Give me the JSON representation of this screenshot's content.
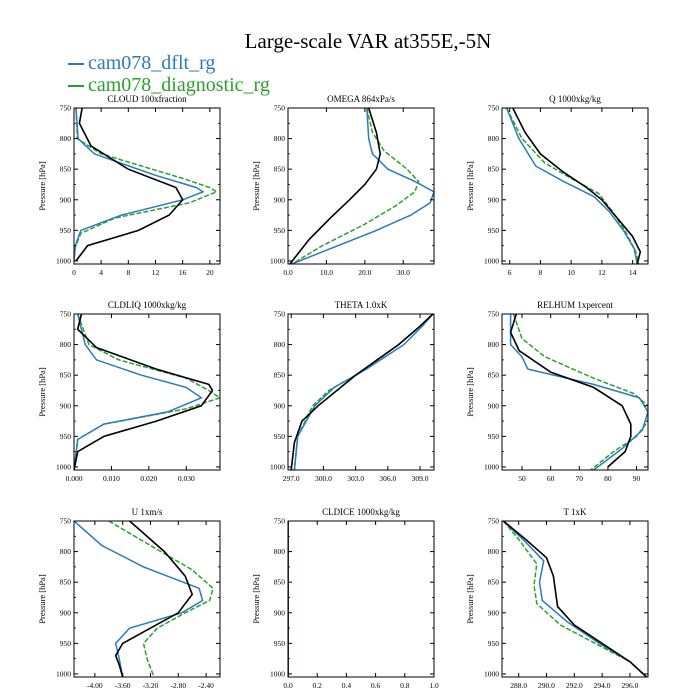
{
  "figure": {
    "title": "Large-scale VAR at355E,-5N",
    "colors": {
      "dflt": "#2b7bba",
      "diag": "#2ca02c",
      "obs": "#000000"
    }
  },
  "chart_data": [
    {
      "type": "line",
      "title": "CLOUD  100xfraction",
      "ylabel": "Pressure [hPa]",
      "xlim": [
        0,
        21.5
      ],
      "ylim": [
        1005,
        750
      ],
      "xticks": [
        0,
        4,
        8,
        12,
        16,
        20
      ],
      "xtick_labels": [
        "0",
        "4",
        "8",
        "12",
        "16",
        "20"
      ],
      "yticks": [
        750,
        800,
        850,
        900,
        950,
        1000
      ],
      "ytick_labels": [
        "750",
        "800",
        "850",
        "900",
        "950",
        "1000"
      ],
      "series": [
        {
          "key": "obs",
          "name": "",
          "x": [
            1.2,
            0.8,
            2.5,
            8,
            15,
            16,
            14,
            9.5,
            2,
            0.3
          ],
          "y": [
            750,
            775,
            812,
            850,
            880,
            900,
            925,
            950,
            975,
            1000
          ]
        },
        {
          "key": "dflt",
          "name": "cam078_dflt_rg",
          "x": [
            0.3,
            0.6,
            3,
            12,
            18,
            19,
            16,
            7,
            1,
            0.2,
            0
          ],
          "y": [
            750,
            800,
            825,
            860,
            880,
            887,
            900,
            925,
            950,
            975,
            1000
          ]
        },
        {
          "key": "diag",
          "name": "cam078_diagnostic_rg",
          "x": [
            0.3,
            0.5,
            4,
            16,
            20,
            21,
            17,
            6,
            1,
            0.1,
            0
          ],
          "y": [
            750,
            800,
            825,
            865,
            880,
            887,
            905,
            930,
            955,
            980,
            1000
          ]
        }
      ]
    },
    {
      "type": "line",
      "title": "OMEGA  864xPa/s",
      "ylabel": "Pressure [hPa]",
      "xlim": [
        0,
        38
      ],
      "ylim": [
        1005,
        750
      ],
      "xticks": [
        0,
        10,
        20,
        30
      ],
      "xtick_labels": [
        "0.0",
        "10.0",
        "20.0",
        "30.0"
      ],
      "yticks": [
        750,
        800,
        850,
        900,
        950,
        1000
      ],
      "ytick_labels": [
        "750",
        "800",
        "850",
        "900",
        "950",
        "1000"
      ],
      "series": [
        {
          "key": "obs",
          "name": "",
          "x": [
            21,
            23,
            24,
            23,
            20,
            16,
            11,
            5.5,
            0.5
          ],
          "y": [
            750,
            790,
            825,
            850,
            875,
            900,
            930,
            965,
            1005
          ]
        },
        {
          "key": "dflt",
          "name": "cam078_dflt_rg",
          "x": [
            20.5,
            21,
            22,
            26,
            33,
            38,
            37,
            32,
            23,
            11,
            1
          ],
          "y": [
            750,
            800,
            825,
            850,
            870,
            887,
            905,
            925,
            950,
            980,
            1005
          ]
        },
        {
          "key": "diag",
          "name": "cam078_diagnostic_rg",
          "x": [
            20.5,
            22,
            25,
            31,
            34,
            33,
            28,
            20,
            9,
            1
          ],
          "y": [
            750,
            790,
            820,
            850,
            870,
            887,
            910,
            940,
            975,
            1005
          ]
        }
      ]
    },
    {
      "type": "line",
      "title": "Q  1000xkg/kg",
      "ylabel": "Pressure [hPa]",
      "xlim": [
        5.5,
        15
      ],
      "ylim": [
        1005,
        750
      ],
      "xticks": [
        6,
        8,
        10,
        12,
        14
      ],
      "xtick_labels": [
        "6",
        "8",
        "10",
        "12",
        "14"
      ],
      "yticks": [
        750,
        800,
        850,
        900,
        950,
        1000
      ],
      "ytick_labels": [
        "750",
        "800",
        "850",
        "900",
        "950",
        "1000"
      ],
      "series": [
        {
          "key": "obs",
          "name": "",
          "x": [
            6.2,
            7,
            8,
            9.5,
            11,
            12,
            13,
            14,
            14.5,
            14.3
          ],
          "y": [
            750,
            790,
            825,
            855,
            880,
            900,
            930,
            960,
            985,
            1005
          ]
        },
        {
          "key": "dflt",
          "name": "cam078_dflt_rg",
          "x": [
            5.8,
            6.6,
            7.7,
            9.5,
            11.5,
            12.5,
            13.4,
            14.1,
            14.3
          ],
          "y": [
            750,
            800,
            845,
            870,
            895,
            920,
            950,
            980,
            1005
          ]
        },
        {
          "key": "diag",
          "name": "cam078_diagnostic_rg",
          "x": [
            5.8,
            6.8,
            8.3,
            10,
            11.8,
            12.7,
            13.5,
            14.2,
            14.4
          ],
          "y": [
            750,
            800,
            840,
            865,
            890,
            920,
            950,
            985,
            1005
          ]
        }
      ]
    },
    {
      "type": "line",
      "title": "CLDLIQ  1000xkg/kg",
      "ylabel": "Pressure [hPa]",
      "xlim": [
        0,
        0.039
      ],
      "ylim": [
        1005,
        750
      ],
      "xticks": [
        0,
        0.01,
        0.02,
        0.03
      ],
      "xtick_labels": [
        "0.000",
        "0.010",
        "0.020",
        "0.030"
      ],
      "yticks": [
        750,
        800,
        850,
        900,
        950,
        1000
      ],
      "ytick_labels": [
        "750",
        "800",
        "850",
        "900",
        "950",
        "1000"
      ],
      "series": [
        {
          "key": "obs",
          "name": "",
          "x": [
            0.002,
            0.001,
            0.006,
            0.022,
            0.036,
            0.037,
            0.034,
            0.022,
            0.008,
            0.001,
            0
          ],
          "y": [
            750,
            775,
            805,
            840,
            865,
            875,
            900,
            925,
            950,
            975,
            1005
          ]
        },
        {
          "key": "dflt",
          "name": "cam078_dflt_rg",
          "x": [
            0.001,
            0.003,
            0.006,
            0.018,
            0.03,
            0.034,
            0.025,
            0.008,
            0.001,
            0
          ],
          "y": [
            750,
            800,
            825,
            850,
            870,
            887,
            910,
            930,
            955,
            1005
          ]
        },
        {
          "key": "diag",
          "name": "cam078_diagnostic_rg",
          "x": [
            0.001,
            0.004,
            0.012,
            0.03,
            0.036,
            0.039,
            0.03,
            0.008,
            0.001,
            0
          ],
          "y": [
            750,
            800,
            825,
            855,
            875,
            887,
            905,
            930,
            955,
            1005
          ]
        }
      ]
    },
    {
      "type": "line",
      "title": "THETA  1.0xK",
      "ylabel": "",
      "xlim": [
        296.7,
        310.3
      ],
      "ylim": [
        1005,
        750
      ],
      "xticks": [
        297,
        300,
        303,
        306,
        309
      ],
      "xtick_labels": [
        "297.0",
        "300.0",
        "303.0",
        "306.0",
        "309.0"
      ],
      "yticks": [
        750,
        800,
        850,
        900,
        950,
        1000
      ],
      "ytick_labels": [
        "750",
        "800",
        "850",
        "900",
        "950",
        "1000"
      ],
      "series": [
        {
          "key": "obs",
          "name": "",
          "x": [
            310.2,
            309,
            307,
            303,
            299.5,
            298,
            297.3,
            297
          ],
          "y": [
            750,
            770,
            800,
            850,
            900,
            925,
            960,
            1005
          ]
        },
        {
          "key": "dflt",
          "name": "cam078_dflt_rg",
          "x": [
            310.2,
            309.2,
            307.5,
            304,
            301,
            299.2,
            297.6,
            297.3
          ],
          "y": [
            750,
            770,
            800,
            840,
            870,
            900,
            950,
            1005
          ]
        },
        {
          "key": "diag",
          "name": "cam078_diagnostic_rg",
          "x": [
            310.2,
            309,
            307,
            303.5,
            300.5,
            299,
            297.6,
            297.3
          ],
          "y": [
            750,
            770,
            800,
            845,
            875,
            900,
            950,
            1005
          ]
        }
      ]
    },
    {
      "type": "line",
      "title": "RELHUM  1xpercent",
      "ylabel": "Pressure [hPa]",
      "xlim": [
        43,
        94
      ],
      "ylim": [
        1005,
        750
      ],
      "xticks": [
        50,
        60,
        70,
        80,
        90
      ],
      "xtick_labels": [
        "50",
        "60",
        "70",
        "80",
        "90"
      ],
      "yticks": [
        750,
        800,
        850,
        900,
        950,
        1000
      ],
      "ytick_labels": [
        "750",
        "800",
        "850",
        "900",
        "950",
        "1000"
      ],
      "series": [
        {
          "key": "obs",
          "name": "",
          "x": [
            48,
            46,
            49,
            60,
            75,
            85,
            88,
            88,
            86,
            80
          ],
          "y": [
            750,
            780,
            810,
            845,
            870,
            900,
            930,
            950,
            975,
            1000
          ]
        },
        {
          "key": "dflt",
          "name": "cam078_dflt_rg",
          "x": [
            46,
            46,
            50,
            52,
            75,
            91,
            94,
            92,
            85,
            75
          ],
          "y": [
            750,
            800,
            820,
            840,
            865,
            887,
            910,
            940,
            970,
            1005
          ]
        },
        {
          "key": "diag",
          "name": "cam078_diagnostic_rg",
          "x": [
            47,
            50,
            58,
            75,
            89,
            94,
            94,
            90,
            82,
            74
          ],
          "y": [
            750,
            790,
            820,
            855,
            880,
            900,
            925,
            950,
            975,
            1005
          ]
        }
      ]
    },
    {
      "type": "line",
      "title": "U  1xm/s",
      "ylabel": "Pressure [hPa]",
      "xlim": [
        -4.3,
        -2.2
      ],
      "ylim": [
        1005,
        750
      ],
      "xticks": [
        -4,
        -3.6,
        -3.2,
        -2.8,
        -2.4
      ],
      "xtick_labels": [
        "-4.00",
        "-3.60",
        "-3.20",
        "-2.80",
        "-2.40"
      ],
      "yticks": [
        750,
        800,
        850,
        900,
        950,
        1000
      ],
      "ytick_labels": [
        "750",
        "800",
        "850",
        "900",
        "950",
        "1000"
      ],
      "series": [
        {
          "key": "obs",
          "name": "",
          "x": [
            -3.5,
            -3.0,
            -2.7,
            -2.6,
            -2.8,
            -3.2,
            -3.6,
            -3.7,
            -3.65,
            -3.6
          ],
          "y": [
            750,
            800,
            840,
            870,
            900,
            925,
            950,
            970,
            985,
            1005
          ]
        },
        {
          "key": "dflt",
          "name": "cam078_dflt_rg",
          "x": [
            -4.3,
            -3.9,
            -3.3,
            -2.5,
            -2.45,
            -2.75,
            -3.5,
            -3.7,
            -3.65,
            -3.6
          ],
          "y": [
            750,
            790,
            825,
            860,
            880,
            900,
            925,
            950,
            975,
            1005
          ]
        },
        {
          "key": "diag",
          "name": "cam078_diagnostic_rg",
          "x": [
            -3.8,
            -3.2,
            -2.6,
            -2.3,
            -2.35,
            -2.7,
            -3.1,
            -3.3,
            -3.25,
            -3.15
          ],
          "y": [
            750,
            790,
            830,
            860,
            880,
            900,
            925,
            950,
            975,
            1005
          ]
        }
      ]
    },
    {
      "type": "line",
      "title": "CLDICE  1000xkg/kg",
      "ylabel": "Pressure [hPa]",
      "xlim": [
        0,
        1
      ],
      "ylim": [
        1005,
        750
      ],
      "xticks": [
        0,
        0.2,
        0.4,
        0.6,
        0.8,
        1.0
      ],
      "xtick_labels": [
        "0.0",
        "0.2",
        "0.4",
        "0.6",
        "0.8",
        "1.0"
      ],
      "yticks": [
        750,
        800,
        850,
        900,
        950,
        1000
      ],
      "ytick_labels": [
        "750",
        "800",
        "850",
        "900",
        "950",
        "1000"
      ],
      "series": [
        {
          "key": "obs",
          "name": "",
          "x": [
            0,
            0
          ],
          "y": [
            750,
            1005
          ]
        },
        {
          "key": "dflt",
          "name": "cam078_dflt_rg",
          "x": [
            0,
            0
          ],
          "y": [
            750,
            1005
          ]
        },
        {
          "key": "diag",
          "name": "cam078_diagnostic_rg",
          "x": [
            0,
            0
          ],
          "y": [
            750,
            1005
          ]
        }
      ]
    },
    {
      "type": "line",
      "title": "T  1xK",
      "ylabel": "Pressure [hPa]",
      "xlim": [
        286.8,
        297.3
      ],
      "ylim": [
        1005,
        750
      ],
      "xticks": [
        288,
        290,
        292,
        294,
        296
      ],
      "xtick_labels": [
        "288.0",
        "290.0",
        "292.0",
        "294.0",
        "296.0"
      ],
      "yticks": [
        750,
        800,
        850,
        900,
        950,
        1000
      ],
      "ytick_labels": [
        "750",
        "800",
        "850",
        "900",
        "950",
        "1000"
      ],
      "series": [
        {
          "key": "obs",
          "name": "",
          "x": [
            286.9,
            288.5,
            290,
            290.5,
            290.8,
            292,
            294,
            296,
            297.2
          ],
          "y": [
            750,
            780,
            810,
            840,
            890,
            920,
            950,
            980,
            1005
          ]
        },
        {
          "key": "dflt",
          "name": "cam078_dflt_rg",
          "x": [
            286.9,
            288.3,
            289.8,
            289.5,
            289.7,
            291.5,
            293.8,
            296,
            297.2
          ],
          "y": [
            750,
            780,
            815,
            850,
            880,
            915,
            950,
            980,
            1005
          ]
        },
        {
          "key": "diag",
          "name": "cam078_diagnostic_rg",
          "x": [
            286.9,
            288,
            289.3,
            289.1,
            289.3,
            291,
            293.5,
            296,
            297.2
          ],
          "y": [
            750,
            780,
            820,
            855,
            885,
            920,
            950,
            980,
            1005
          ]
        }
      ]
    }
  ]
}
